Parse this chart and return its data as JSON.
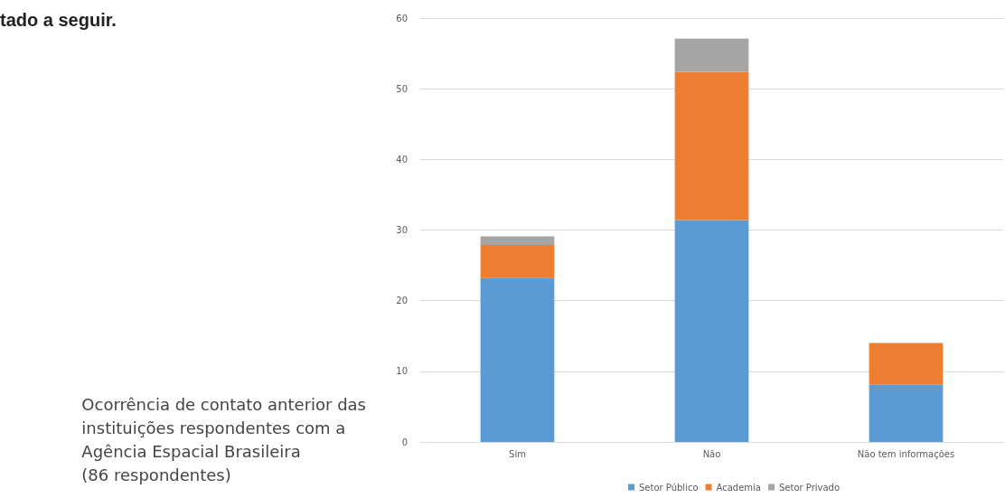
{
  "chart_data": {
    "type": "bar",
    "stacked": true,
    "categories": [
      "Sim",
      "Não",
      "Não tem informações"
    ],
    "series": [
      {
        "name": "Setor Público",
        "color": "#5b9bd5",
        "values": [
          23.2,
          31.4,
          8.1
        ]
      },
      {
        "name": "Academia",
        "color": "#ed7d31",
        "values": [
          4.7,
          21,
          5.9
        ]
      },
      {
        "name": "Setor Privado",
        "color": "#a5a5a5",
        "values": [
          1.2,
          4.7,
          0
        ]
      }
    ],
    "ylim": [
      0,
      60
    ],
    "yticks": [
      0,
      10,
      20,
      30,
      40,
      50,
      60
    ],
    "grid": "y",
    "legend": "bottom",
    "annotations": [
      "tado a seguir.",
      "Ocorrência de contato anterior das\ninstituições respondentes com a\nAgência Espacial Brasileira\n(86 respondentes)"
    ]
  }
}
